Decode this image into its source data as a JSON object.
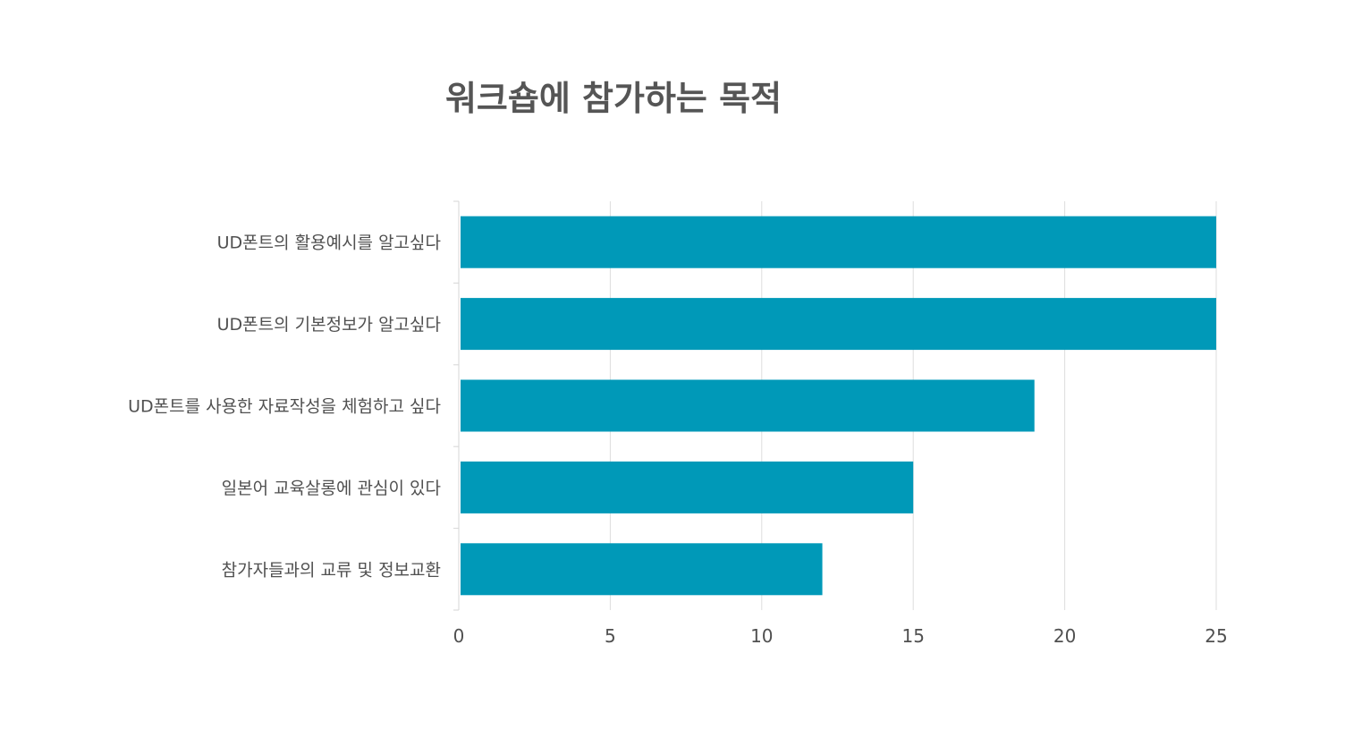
{
  "chart_data": {
    "type": "bar",
    "orientation": "horizontal",
    "title": "워크숍에 참가하는 목적",
    "xlabel": "",
    "ylabel": "",
    "categories": [
      "UD폰트의 활용예시를 알고싶다",
      "UD폰트의 기본정보가 알고싶다",
      "UD폰트를 사용한 자료작성을 체험하고 싶다",
      "일본어 교육살롱에 관심이 있다",
      "참가자들과의 교류 및 정보교환"
    ],
    "values": [
      25,
      25,
      19,
      15,
      12
    ],
    "xlim": [
      0,
      25
    ],
    "xticks": [
      "0",
      "5",
      "10",
      "15",
      "20",
      "25"
    ],
    "grid": true,
    "legend": "none",
    "bar_color": "#0099b8"
  }
}
